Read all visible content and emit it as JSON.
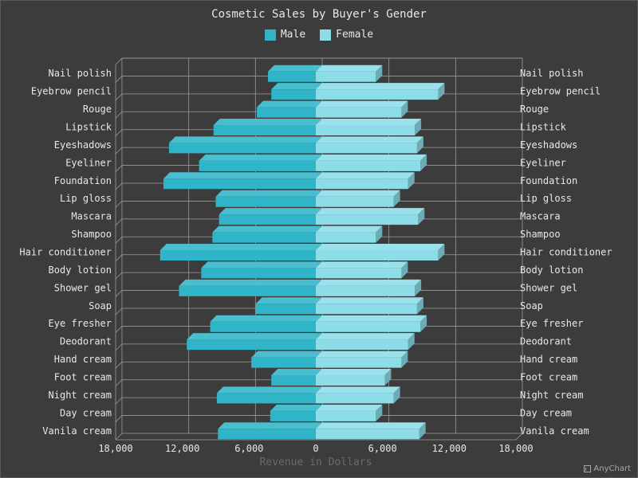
{
  "chart_data": {
    "type": "bar",
    "orientation": "horizontal-diverging-3d",
    "title": "Cosmetic Sales by Buyer's Gender",
    "xlabel": "Revenue in Dollars",
    "ylabel": "",
    "xlim": [
      -18000,
      18000
    ],
    "x_ticks": [
      -18000,
      -12000,
      -6000,
      0,
      6000,
      12000,
      18000
    ],
    "x_tick_labels": [
      "18,000",
      "12,000",
      "6,000",
      "0",
      "6,000",
      "12,000",
      "18,000"
    ],
    "grid": true,
    "legend_position": "top-center",
    "categories": [
      "Nail polish",
      "Eyebrow pencil",
      "Rouge",
      "Lipstick",
      "Eyeshadows",
      "Eyeliner",
      "Foundation",
      "Lip gloss",
      "Mascara",
      "Shampoo",
      "Hair conditioner",
      "Body lotion",
      "Shower gel",
      "Soap",
      "Eye fresher",
      "Deodorant",
      "Hand cream",
      "Foot cream",
      "Night cream",
      "Day cream",
      "Vanila cream"
    ],
    "series": [
      {
        "name": "Male",
        "color": "#2fb5c7",
        "values": [
          4300,
          4000,
          5300,
          9200,
          13200,
          10500,
          13700,
          9000,
          8700,
          9300,
          14000,
          10300,
          12300,
          5400,
          9500,
          11600,
          5800,
          4000,
          8900,
          4100,
          8800
        ]
      },
      {
        "name": "Female",
        "color": "#8ddde8",
        "values": [
          5400,
          11000,
          7700,
          8900,
          9100,
          9400,
          8300,
          7000,
          9200,
          5400,
          11000,
          7700,
          8900,
          9100,
          9400,
          8300,
          7700,
          6200,
          7000,
          5400,
          9300
        ]
      }
    ]
  },
  "credit": "AnyChart"
}
